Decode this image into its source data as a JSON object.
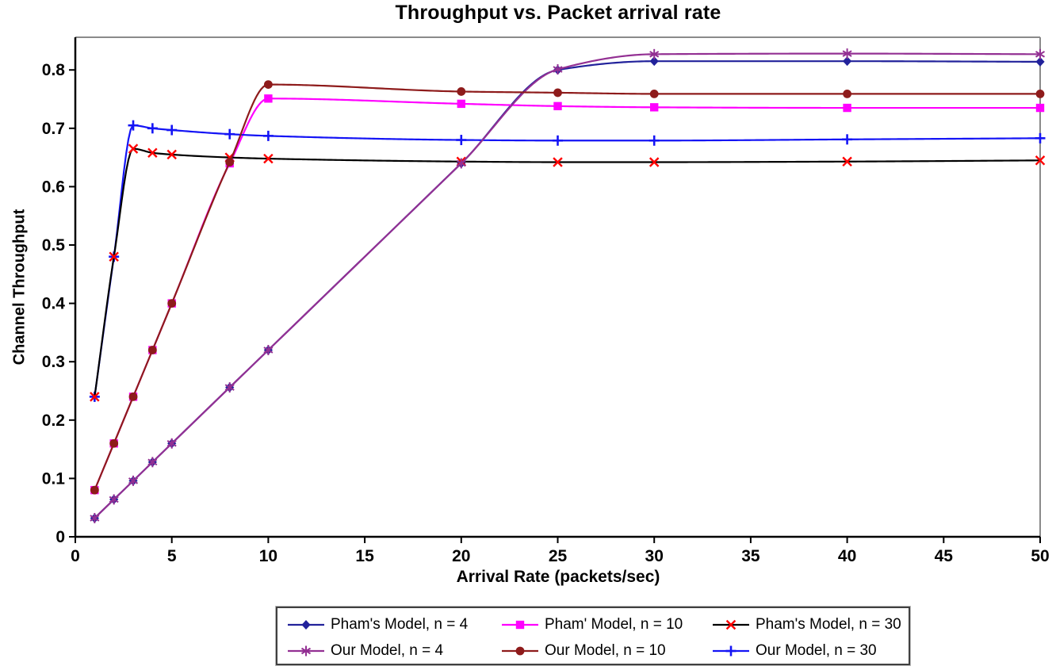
{
  "title": "Throughput vs. Packet arrival rate",
  "chart_data": {
    "type": "line",
    "title": "Throughput vs. Packet arrival rate",
    "xlabel": "Arrival Rate (packets/sec)",
    "ylabel": "Channel Throughput",
    "xlim": [
      0,
      50
    ],
    "ylim": [
      0,
      0.856
    ],
    "xticks": [
      0,
      5,
      10,
      15,
      20,
      25,
      30,
      35,
      40,
      45,
      50
    ],
    "yticks": [
      0,
      0.1,
      0.2,
      0.3,
      0.4,
      0.5,
      0.6,
      0.7,
      0.8
    ],
    "grid": false,
    "legend_position": "bottom",
    "x": [
      1,
      2,
      3,
      4,
      5,
      8,
      10,
      20,
      25,
      30,
      40,
      50
    ],
    "series": [
      {
        "name": "Pham's Model, n = 4",
        "color": "#22229B",
        "marker": "diamond",
        "values": [
          0.032,
          0.064,
          0.096,
          0.128,
          0.16,
          0.256,
          0.32,
          0.64,
          0.8,
          0.815,
          0.815,
          0.814
        ]
      },
      {
        "name": "Pham' Model, n = 10",
        "color": "#FF00FF",
        "marker": "square",
        "values": [
          0.08,
          0.16,
          0.24,
          0.32,
          0.4,
          0.64,
          0.751,
          0.742,
          0.738,
          0.736,
          0.735,
          0.735
        ]
      },
      {
        "name": "Pham's Model, n = 30",
        "color": "#000000",
        "marker": "x",
        "marker_color": "#FF0000",
        "values": [
          0.24,
          0.48,
          0.665,
          0.658,
          0.655,
          0.65,
          0.648,
          0.643,
          0.642,
          0.642,
          0.643,
          0.645
        ]
      },
      {
        "name": "Our Model, n = 4",
        "color": "#933093",
        "marker": "asterisk",
        "values": [
          0.032,
          0.064,
          0.096,
          0.128,
          0.16,
          0.256,
          0.32,
          0.64,
          0.801,
          0.827,
          0.828,
          0.827
        ]
      },
      {
        "name": "Our Model, n = 10",
        "color": "#8E1B1B",
        "marker": "circle",
        "values": [
          0.08,
          0.16,
          0.24,
          0.32,
          0.4,
          0.642,
          0.775,
          0.763,
          0.761,
          0.759,
          0.759,
          0.759
        ]
      },
      {
        "name": "Our Model, n = 30",
        "color": "#1414F5",
        "marker": "plus",
        "values": [
          0.24,
          0.48,
          0.705,
          0.7,
          0.697,
          0.69,
          0.687,
          0.68,
          0.679,
          0.679,
          0.681,
          0.683
        ]
      }
    ],
    "z_order": [
      0,
      1,
      5,
      2,
      3,
      4
    ],
    "frame_color": "#8A8A8A",
    "axis_color": "#000000"
  }
}
